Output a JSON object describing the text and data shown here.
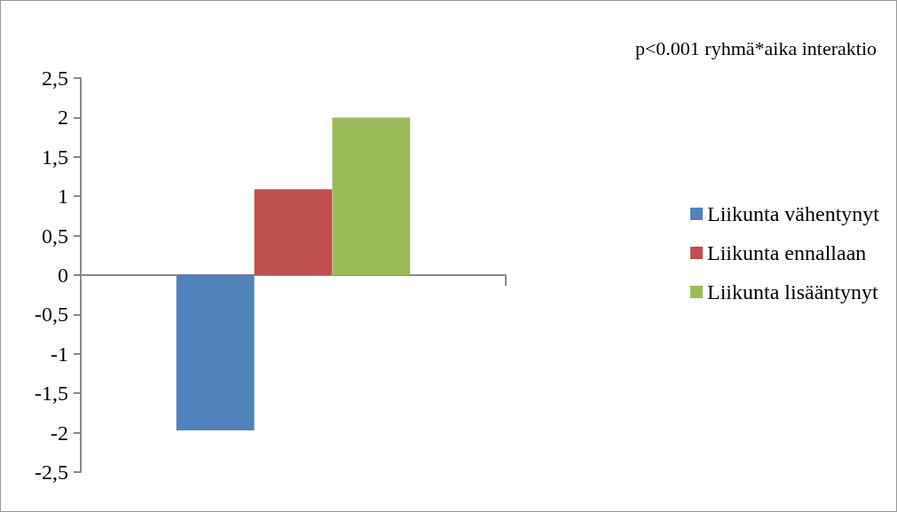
{
  "chart_data": {
    "type": "bar",
    "categories": [
      null
    ],
    "series": [
      {
        "name": "Liikunta vähentynyt",
        "color": "#4f81bd",
        "values": [
          -1.97
        ]
      },
      {
        "name": "Liikunta ennallaan",
        "color": "#c0504d",
        "values": [
          1.09
        ]
      },
      {
        "name": "Liikunta lisääntynyt",
        "color": "#9bbb59",
        "values": [
          2.0
        ]
      }
    ],
    "ylim": [
      -2.5,
      2.5
    ],
    "yticks": [
      {
        "value": -2.5,
        "label": "-2,5"
      },
      -2,
      {
        "value": -1.5,
        "label": "-1,5"
      },
      -1,
      {
        "value": -0.5,
        "label": "-0,5"
      },
      0,
      {
        "value": 0.5,
        "label": "0,5"
      },
      1,
      {
        "value": 1.5,
        "label": "1,5"
      },
      2,
      {
        "value": 2.5,
        "label": "2,5"
      }
    ],
    "annotations": [
      "p<0.001 ryhmä*aika interaktio"
    ],
    "legend": "right"
  }
}
